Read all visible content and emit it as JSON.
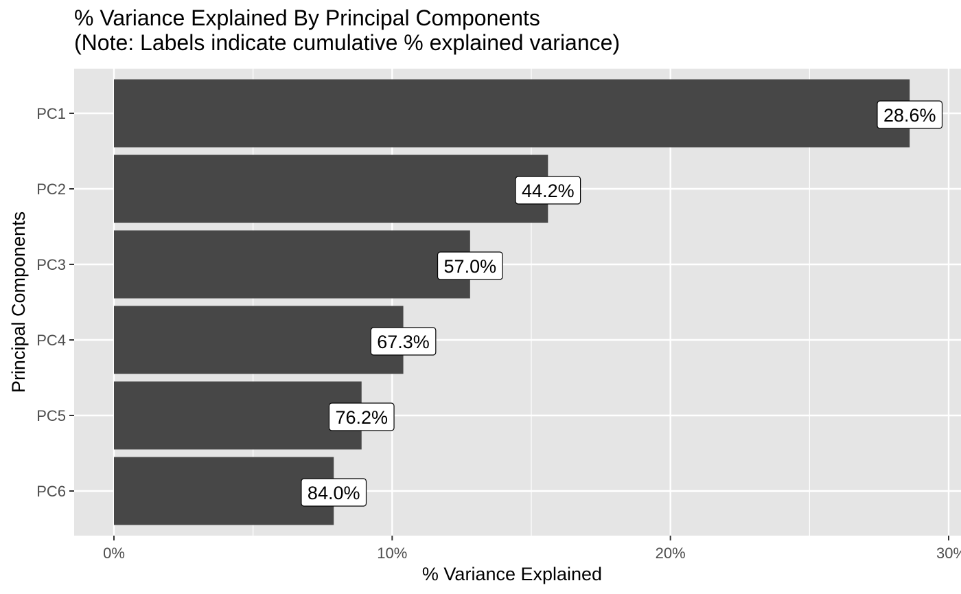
{
  "chart_data": {
    "type": "bar",
    "orientation": "horizontal",
    "title": "% Variance Explained By Principal Components",
    "subtitle": "(Note: Labels indicate cumulative % explained variance)",
    "xlabel": "% Variance Explained",
    "ylabel": "Principal Components",
    "categories": [
      "PC1",
      "PC2",
      "PC3",
      "PC4",
      "PC5",
      "PC6"
    ],
    "values": [
      28.6,
      15.6,
      12.8,
      10.4,
      8.9,
      7.9
    ],
    "labels": [
      "28.6%",
      "44.2%",
      "57.0%",
      "67.3%",
      "76.2%",
      "84.0%"
    ],
    "xlim": [
      0,
      30
    ],
    "xticks": [
      0,
      10,
      20,
      30
    ],
    "xtick_labels": [
      "0%",
      "10%",
      "20%",
      "30%"
    ],
    "grid": true,
    "colors": {
      "panel": "#e5e5e5",
      "bar": "#474747",
      "grid": "#ffffff",
      "label_bg": "#ffffff"
    }
  }
}
